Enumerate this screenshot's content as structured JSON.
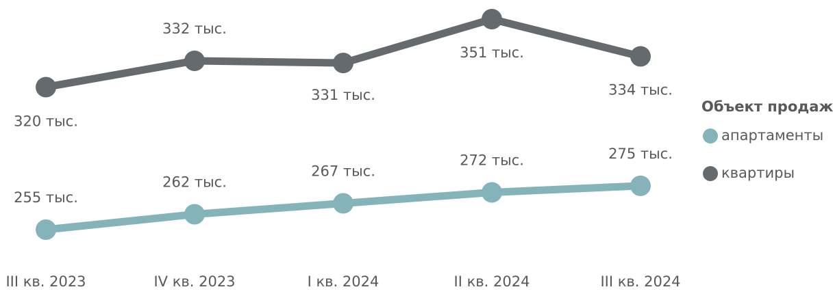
{
  "chart_data": {
    "type": "line",
    "categories": [
      "III кв. 2023",
      "IV кв. 2023",
      "I кв. 2024",
      "II кв. 2024",
      "III кв. 2024"
    ],
    "legend_title": "Объект продаж",
    "series": [
      {
        "name": "апартаменты",
        "color": "#84b3ba",
        "values": [
          255,
          262,
          267,
          272,
          275
        ],
        "value_labels": [
          "255 тыс.",
          "262 тыс.",
          "267 тыс.",
          "272 тыс.",
          "275 тыс."
        ]
      },
      {
        "name": "квартиры",
        "color": "#646a6d",
        "values": [
          320,
          332,
          331,
          351,
          334
        ],
        "value_labels": [
          "320 тыс.",
          "332 тыс.",
          "331 тыс.",
          "351 тыс.",
          "334 тыс."
        ]
      }
    ]
  }
}
